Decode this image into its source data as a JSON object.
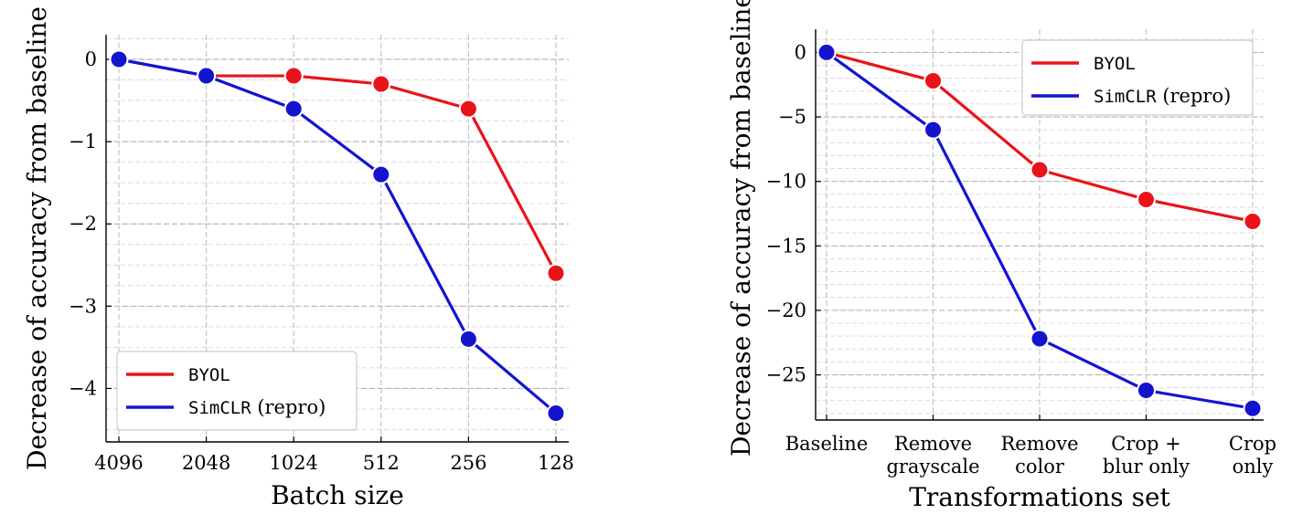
{
  "chart_data": [
    {
      "type": "line",
      "title": "",
      "xlabel": "Batch size",
      "ylabel": "Decrease of accuracy from baseline",
      "categories": [
        "4096",
        "2048",
        "1024",
        "512",
        "256",
        "128"
      ],
      "ylim": [
        -4.65,
        0.3
      ],
      "yticks": [
        0,
        -1,
        -2,
        -3,
        -4
      ],
      "ytick_labels": [
        "0",
        "−1",
        "−2",
        "−3",
        "−4"
      ],
      "grid": true,
      "legend_position": "lower-left",
      "series": [
        {
          "name": "BYOL",
          "name_main": "BYOL",
          "name_suffix": "",
          "color": "#e8141a",
          "values": [
            0,
            -0.2,
            -0.2,
            -0.3,
            -0.6,
            -2.6
          ]
        },
        {
          "name": "SimCLR (repro)",
          "name_main": "SimCLR",
          "name_suffix": " (repro)",
          "color": "#1414cf",
          "values": [
            0,
            -0.2,
            -0.6,
            -1.4,
            -3.4,
            -4.3
          ]
        }
      ]
    },
    {
      "type": "line",
      "title": "",
      "xlabel": "Transformations set",
      "ylabel": "Decrease of accuracy from baseline",
      "categories": [
        [
          "Baseline"
        ],
        [
          "Remove",
          "grayscale"
        ],
        [
          "Remove",
          "color"
        ],
        [
          "Crop +",
          "blur only"
        ],
        [
          "Crop",
          "only"
        ]
      ],
      "ylim": [
        -28.5,
        1.8
      ],
      "yticks": [
        0,
        -5,
        -10,
        -15,
        -20,
        -25
      ],
      "ytick_labels": [
        "0",
        "−5",
        "−10",
        "−15",
        "−20",
        "−25"
      ],
      "grid": true,
      "legend_position": "top-right",
      "series": [
        {
          "name": "BYOL",
          "name_main": "BYOL",
          "name_suffix": "",
          "color": "#e8141a",
          "values": [
            0,
            -2.2,
            -9.1,
            -11.4,
            -13.1
          ]
        },
        {
          "name": "SimCLR (repro)",
          "name_main": "SimCLR",
          "name_suffix": " (repro)",
          "color": "#1414cf",
          "values": [
            0,
            -6.0,
            -22.2,
            -26.2,
            -27.6
          ]
        }
      ]
    }
  ]
}
